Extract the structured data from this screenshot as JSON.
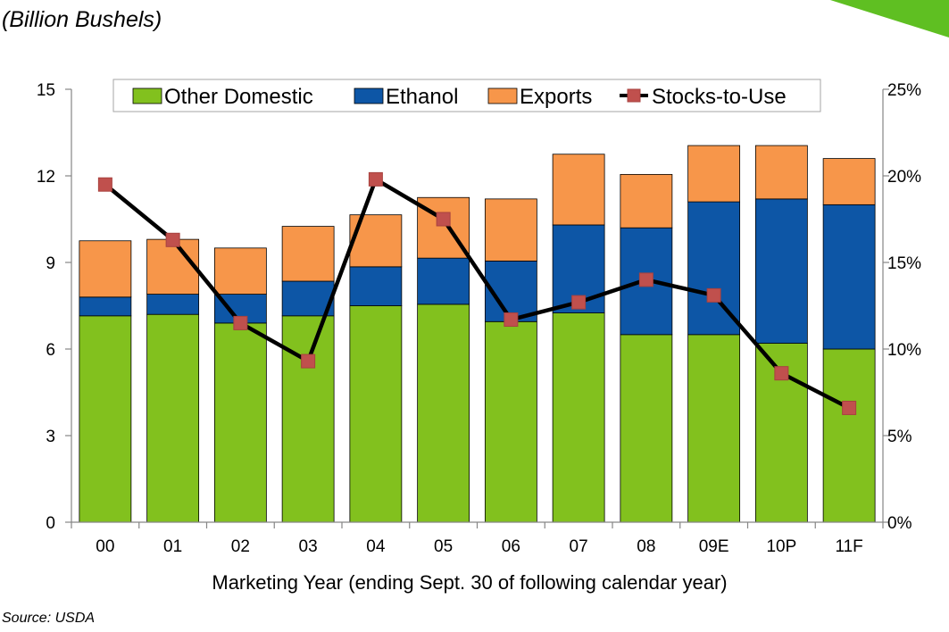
{
  "chart_data": {
    "type": "bar",
    "stacked": true,
    "unit_label": "(Billion Bushels)",
    "source": "Source:  USDA",
    "xlabel": "Marketing Year (ending Sept. 30 of following calendar year)",
    "categories": [
      "00",
      "01",
      "02",
      "03",
      "04",
      "05",
      "06",
      "07",
      "08",
      "09E",
      "10P",
      "11F"
    ],
    "left_axis": {
      "min": 0,
      "max": 15,
      "ticks": [
        0,
        3,
        6,
        9,
        12,
        15
      ],
      "tick_labels": [
        "0",
        "3",
        "6",
        "9",
        "12",
        "15"
      ]
    },
    "right_axis": {
      "min": 0,
      "max": 25,
      "ticks": [
        0,
        5,
        10,
        15,
        20,
        25
      ],
      "tick_labels": [
        "0%",
        "5%",
        "10%",
        "15%",
        "20%",
        "25%"
      ]
    },
    "series": [
      {
        "name": "Other Domestic",
        "color": "#82c11e",
        "axis": "left",
        "values": [
          7.15,
          7.2,
          6.9,
          7.15,
          7.5,
          7.55,
          6.95,
          7.25,
          6.5,
          6.5,
          6.2,
          6.0
        ]
      },
      {
        "name": "Ethanol",
        "color": "#0d56a6",
        "axis": "left",
        "values": [
          0.65,
          0.7,
          1.0,
          1.2,
          1.35,
          1.6,
          2.1,
          3.05,
          3.7,
          4.6,
          5.0,
          5.0
        ]
      },
      {
        "name": "Exports",
        "color": "#f7964a",
        "axis": "left",
        "values": [
          1.95,
          1.9,
          1.6,
          1.9,
          1.8,
          2.1,
          2.15,
          2.45,
          1.85,
          1.95,
          1.85,
          1.6
        ]
      },
      {
        "name": "Stocks-to-Use",
        "type": "line",
        "axis": "right",
        "line_color": "#000000",
        "marker_color": "#c0504d",
        "values": [
          19.5,
          16.3,
          11.5,
          9.3,
          19.8,
          17.5,
          11.7,
          12.7,
          14.0,
          13.1,
          8.6,
          6.6
        ]
      }
    ],
    "legend_position": "top",
    "grid": false
  },
  "decor": {
    "corner_accent_color": "#5fbf22"
  }
}
